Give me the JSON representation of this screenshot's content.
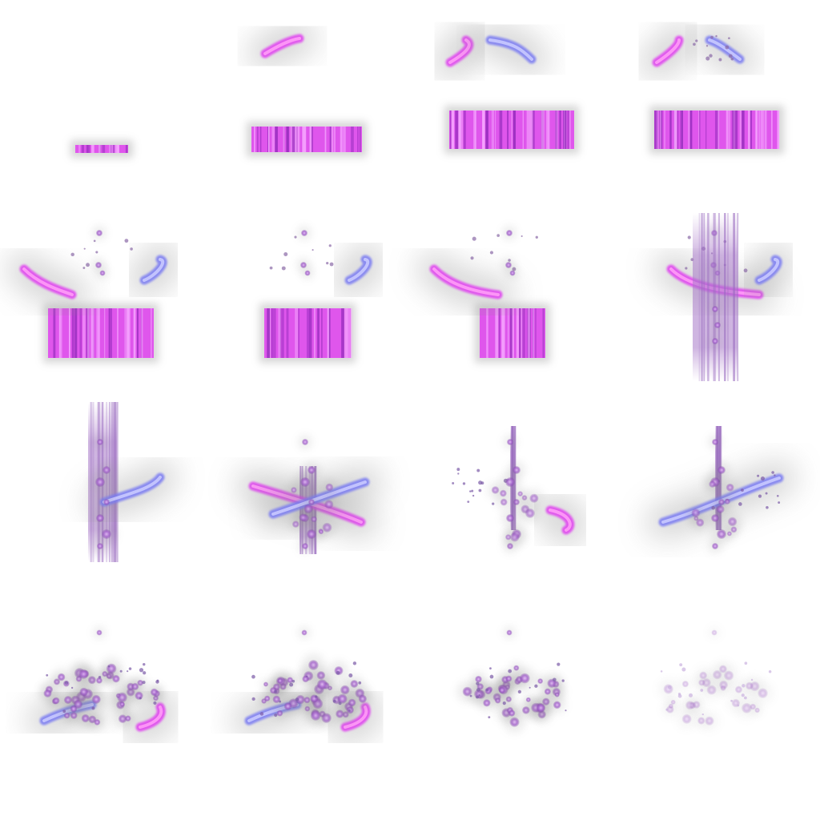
{
  "sheet": {
    "type": "sprite-sheet",
    "effect": "magic-slash-burst",
    "columns": 4,
    "rows": 4,
    "frame_count": 16
  },
  "colors": {
    "background": "#ffffff",
    "magenta": "#e040f0",
    "magenta_core": "#ff9cf7",
    "blue": "#7a7cf2",
    "blue_core": "#c9c9ff",
    "orb": "#9c5ac4",
    "orb_core": "#d7a6f2",
    "glow": "#8a8a8a",
    "bar_edge": "#c03ae0",
    "bar_light": "#f6a6ff"
  },
  "frames": [
    {
      "index": 1,
      "bar": "small",
      "left_slash": "none",
      "right_slash": "none",
      "orbs": "none",
      "beam": "none"
    },
    {
      "index": 2,
      "bar": "medium",
      "left_slash": "spark",
      "right_slash": "none",
      "orbs": "none",
      "beam": "none"
    },
    {
      "index": 3,
      "bar": "large",
      "left_slash": "arc",
      "right_slash": "arc",
      "orbs": "none",
      "beam": "none"
    },
    {
      "index": 4,
      "bar": "large",
      "left_slash": "arc",
      "right_slash": "arc",
      "orbs": "sparks",
      "beam": "none"
    },
    {
      "index": 5,
      "bar": "large",
      "left_slash": "arc",
      "right_slash": "hook",
      "orbs": "few",
      "beam": "none"
    },
    {
      "index": 6,
      "bar": "medium",
      "left_slash": "none",
      "right_slash": "hook",
      "orbs": "few",
      "beam": "none"
    },
    {
      "index": 7,
      "bar": "small",
      "left_slash": "sweep",
      "right_slash": "none",
      "orbs": "few",
      "beam": "none"
    },
    {
      "index": 8,
      "bar": "none",
      "left_slash": "sweep-long",
      "right_slash": "hook",
      "orbs": "column",
      "beam": "tall"
    },
    {
      "index": 9,
      "bar": "none",
      "left_slash": "none",
      "right_slash": "rising",
      "orbs": "column",
      "beam": "tall"
    },
    {
      "index": 10,
      "bar": "none",
      "left_slash": "cross",
      "right_slash": "cross",
      "orbs": "column",
      "beam": "short"
    },
    {
      "index": 11,
      "bar": "none",
      "left_slash": "scatter",
      "right_slash": "hook",
      "orbs": "column",
      "beam": "thin"
    },
    {
      "index": 12,
      "bar": "none",
      "left_slash": "rising",
      "right_slash": "scatter",
      "orbs": "cluster",
      "beam": "thin"
    },
    {
      "index": 13,
      "bar": "none",
      "left_slash": "hook",
      "right_slash": "hook",
      "orbs": "burst",
      "beam": "none"
    },
    {
      "index": 14,
      "bar": "none",
      "left_slash": "hook",
      "right_slash": "hook",
      "orbs": "burst",
      "beam": "none"
    },
    {
      "index": 15,
      "bar": "none",
      "left_slash": "none",
      "right_slash": "none",
      "orbs": "heart",
      "beam": "none"
    },
    {
      "index": 16,
      "bar": "none",
      "left_slash": "none",
      "right_slash": "none",
      "orbs": "fading",
      "beam": "none"
    }
  ]
}
